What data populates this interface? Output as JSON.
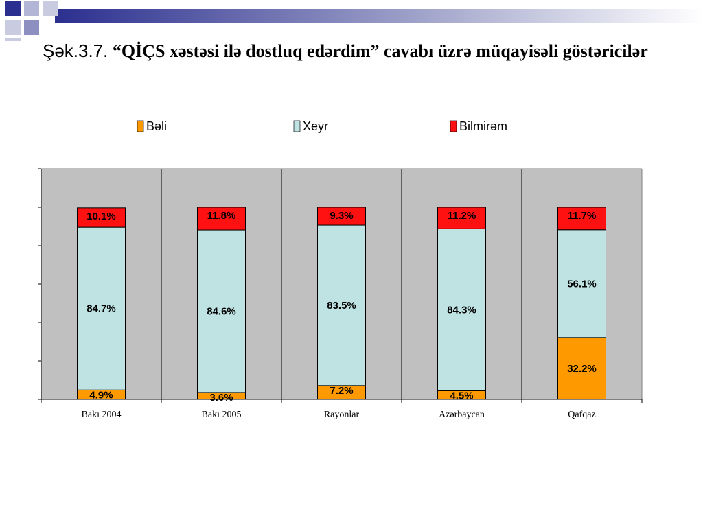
{
  "slide": {
    "title_number": "Şək.3.7.",
    "title_text": "“QİÇS xəstəsi ilə dostluq edərdim” cavabı üzrə müqayisəli göstəricilər"
  },
  "chart_data": {
    "type": "bar",
    "stacked": true,
    "stack_mode": "percent",
    "categories": [
      "Bakı 2004",
      "Bakı 2005",
      "Rayonlar",
      "Azərbaycan",
      "Qafqaz"
    ],
    "series": [
      {
        "name": "Bəli",
        "color": "#ff9900",
        "values": [
          4.9,
          3.6,
          7.2,
          4.5,
          32.2
        ],
        "labels": [
          "4.9%",
          "3.6%",
          "7.2%",
          "4.5%",
          "32.2%"
        ]
      },
      {
        "name": "Xeyr",
        "color": "#bfe3e3",
        "values": [
          84.7,
          84.6,
          83.5,
          84.3,
          56.1
        ],
        "labels": [
          "84.7%",
          "84.6%",
          "83.5%",
          "84.3%",
          "56.1%"
        ]
      },
      {
        "name": "Bilmirəm",
        "color": "#ff1111",
        "values": [
          10.1,
          11.8,
          9.3,
          11.2,
          11.7
        ],
        "labels": [
          "10.1%",
          "11.8%",
          "9.3%",
          "11.2%",
          "11.7%"
        ]
      }
    ],
    "legend_position": "top",
    "plot_background": "#c0c0c0",
    "ylim": [
      0,
      120
    ],
    "y_tick_labels_shown": false
  }
}
